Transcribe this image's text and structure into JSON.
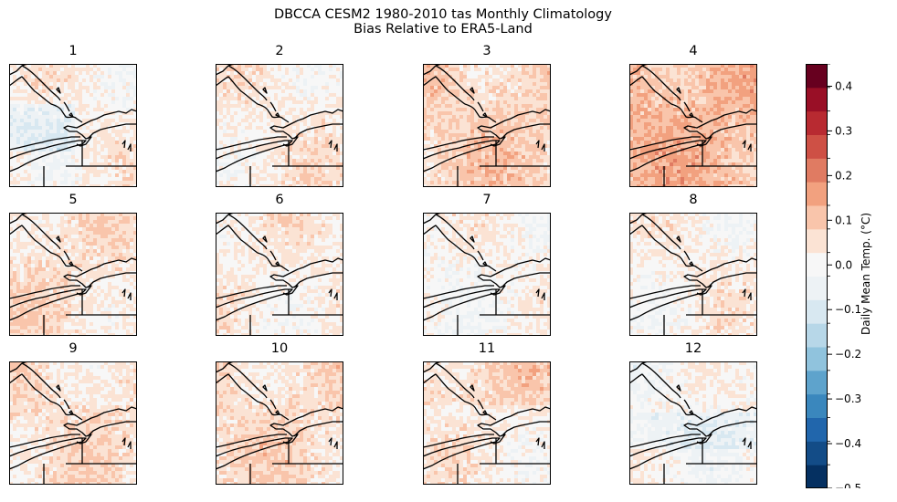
{
  "chart_data": {
    "type": "heatmap",
    "title_line1": "DBCCA CESM2 1980-2010 tas Monthly Climatology",
    "title_line2": "Bias Relative to ERA5-Land",
    "panels": [
      {
        "label": "1",
        "mean_bias": 0.02
      },
      {
        "label": "2",
        "mean_bias": 0.03
      },
      {
        "label": "3",
        "mean_bias": 0.08
      },
      {
        "label": "4",
        "mean_bias": 0.12
      },
      {
        "label": "5",
        "mean_bias": 0.05
      },
      {
        "label": "6",
        "mean_bias": 0.03
      },
      {
        "label": "7",
        "mean_bias": 0.01
      },
      {
        "label": "8",
        "mean_bias": 0.02
      },
      {
        "label": "9",
        "mean_bias": 0.05
      },
      {
        "label": "10",
        "mean_bias": 0.06
      },
      {
        "label": "11",
        "mean_bias": 0.03
      },
      {
        "label": "12",
        "mean_bias": 0.0
      }
    ],
    "colorbar": {
      "label": "Daily Mean Temp. (°C)",
      "vmin": -0.5,
      "vmax": 0.45,
      "ticks": [
        "0.4",
        "0.3",
        "0.2",
        "0.1",
        "0.0",
        "−0.1",
        "−0.2",
        "−0.3",
        "−0.4",
        "−0.5"
      ],
      "tick_values": [
        0.4,
        0.3,
        0.2,
        0.1,
        0.0,
        -0.1,
        -0.2,
        -0.3,
        -0.4,
        -0.5
      ],
      "colors": [
        "#053061",
        "#134c87",
        "#2166ac",
        "#3a87bd",
        "#5ea3cc",
        "#90c3dd",
        "#b7d7e8",
        "#d8e8f1",
        "#edf2f5",
        "#f7f7f7",
        "#fbe3d4",
        "#f9c5ab",
        "#f2a17f",
        "#e07b62",
        "#ce5045",
        "#b82a31",
        "#990f26",
        "#67001f"
      ]
    }
  }
}
